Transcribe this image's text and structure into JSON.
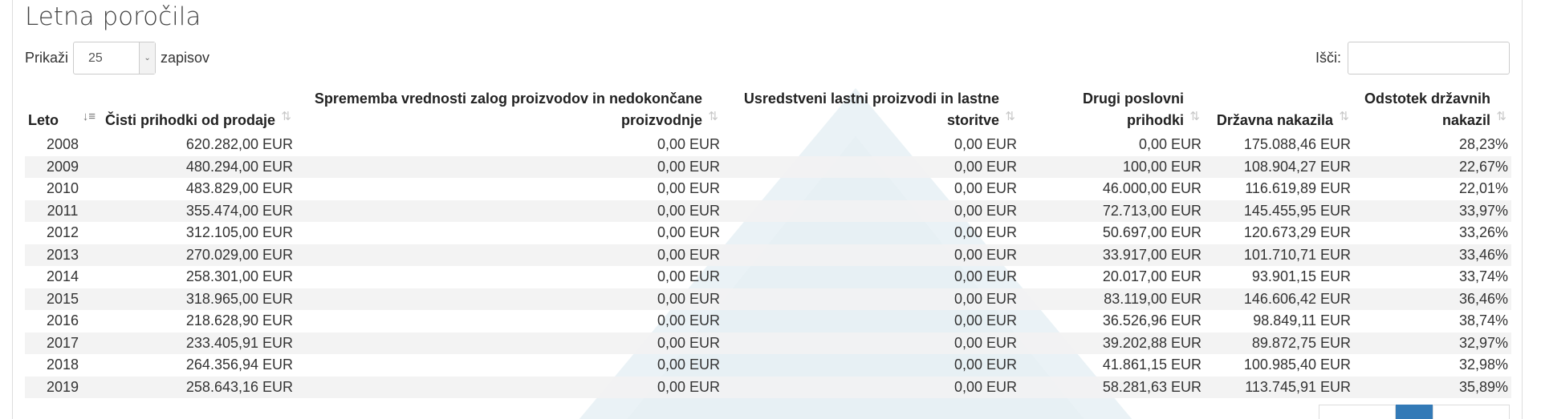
{
  "page": {
    "title": "Letna poročila"
  },
  "length": {
    "label_before": "Prikaži",
    "value": "25",
    "label_after": "zapisov"
  },
  "search": {
    "label": "Išči:",
    "value": ""
  },
  "columns": [
    "Leto",
    "Čisti prihodki od prodaje",
    "Sprememba vrednosti zalog proizvodov in nedokončane proizvodnje",
    "Usredstveni lastni proizvodi in lastne storitve",
    "Drugi poslovni prihodki",
    "Državna nakazila",
    "Odstotek državnih nakazil"
  ],
  "rows": [
    [
      "2008",
      "620.282,00 EUR",
      "0,00 EUR",
      "0,00 EUR",
      "0,00 EUR",
      "175.088,46 EUR",
      "28,23%"
    ],
    [
      "2009",
      "480.294,00 EUR",
      "0,00 EUR",
      "0,00 EUR",
      "100,00 EUR",
      "108.904,27 EUR",
      "22,67%"
    ],
    [
      "2010",
      "483.829,00 EUR",
      "0,00 EUR",
      "0,00 EUR",
      "46.000,00 EUR",
      "116.619,89 EUR",
      "22,01%"
    ],
    [
      "2011",
      "355.474,00 EUR",
      "0,00 EUR",
      "0,00 EUR",
      "72.713,00 EUR",
      "145.455,95 EUR",
      "33,97%"
    ],
    [
      "2012",
      "312.105,00 EUR",
      "0,00 EUR",
      "0,00 EUR",
      "50.697,00 EUR",
      "120.673,29 EUR",
      "33,26%"
    ],
    [
      "2013",
      "270.029,00 EUR",
      "0,00 EUR",
      "0,00 EUR",
      "33.917,00 EUR",
      "101.710,71 EUR",
      "33,46%"
    ],
    [
      "2014",
      "258.301,00 EUR",
      "0,00 EUR",
      "0,00 EUR",
      "20.017,00 EUR",
      "93.901,15 EUR",
      "33,74%"
    ],
    [
      "2015",
      "318.965,00 EUR",
      "0,00 EUR",
      "0,00 EUR",
      "83.119,00 EUR",
      "146.606,42 EUR",
      "36,46%"
    ],
    [
      "2016",
      "218.628,90 EUR",
      "0,00 EUR",
      "0,00 EUR",
      "36.526,96 EUR",
      "98.849,11 EUR",
      "38,74%"
    ],
    [
      "2017",
      "233.405,91 EUR",
      "0,00 EUR",
      "0,00 EUR",
      "39.202,88 EUR",
      "89.872,75 EUR",
      "32,97%"
    ],
    [
      "2018",
      "264.356,94 EUR",
      "0,00 EUR",
      "0,00 EUR",
      "41.861,15 EUR",
      "100.985,40 EUR",
      "32,98%"
    ],
    [
      "2019",
      "258.643,16 EUR",
      "0,00 EUR",
      "0,00 EUR",
      "58.281,63 EUR",
      "113.745,91 EUR",
      "35,89%"
    ]
  ],
  "icons": {
    "sort_active": "sort-ascending-icon",
    "sort_inactive": "sort-both-icon",
    "select_arrow": "chevron-down-icon"
  },
  "colors": {
    "pager_active": "#337ab7",
    "row_stripe": "#f2f2f2",
    "watermark": "#d9e8ee"
  }
}
